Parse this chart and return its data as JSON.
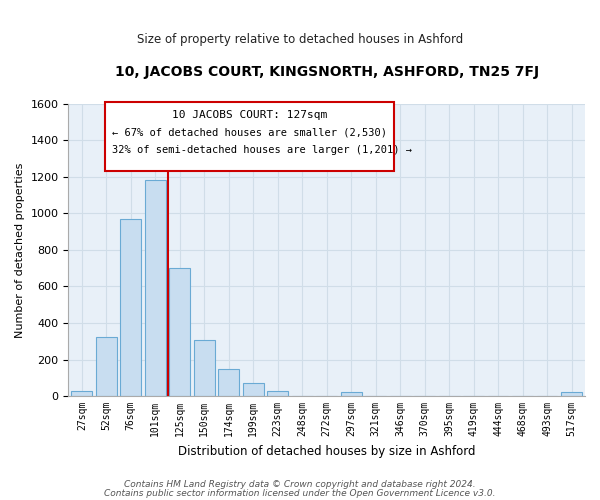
{
  "title": "10, JACOBS COURT, KINGSNORTH, ASHFORD, TN25 7FJ",
  "subtitle": "Size of property relative to detached houses in Ashford",
  "xlabel": "Distribution of detached houses by size in Ashford",
  "ylabel": "Number of detached properties",
  "bin_labels": [
    "27sqm",
    "52sqm",
    "76sqm",
    "101sqm",
    "125sqm",
    "150sqm",
    "174sqm",
    "199sqm",
    "223sqm",
    "248sqm",
    "272sqm",
    "297sqm",
    "321sqm",
    "346sqm",
    "370sqm",
    "395sqm",
    "419sqm",
    "444sqm",
    "468sqm",
    "493sqm",
    "517sqm"
  ],
  "bar_heights": [
    30,
    325,
    970,
    1185,
    700,
    305,
    150,
    70,
    25,
    0,
    0,
    20,
    0,
    0,
    0,
    0,
    0,
    0,
    0,
    0,
    20
  ],
  "bar_color": "#c8ddf0",
  "bar_edge_color": "#6aaad4",
  "vline_color": "#cc0000",
  "annotation_title": "10 JACOBS COURT: 127sqm",
  "annotation_line1": "← 67% of detached houses are smaller (2,530)",
  "annotation_line2": "32% of semi-detached houses are larger (1,201) →",
  "ylim": [
    0,
    1600
  ],
  "yticks": [
    0,
    200,
    400,
    600,
    800,
    1000,
    1200,
    1400,
    1600
  ],
  "footer1": "Contains HM Land Registry data © Crown copyright and database right 2024.",
  "footer2": "Contains public sector information licensed under the Open Government Licence v3.0.",
  "grid_color": "#d0dde8",
  "axes_bg": "#e8f0f8"
}
